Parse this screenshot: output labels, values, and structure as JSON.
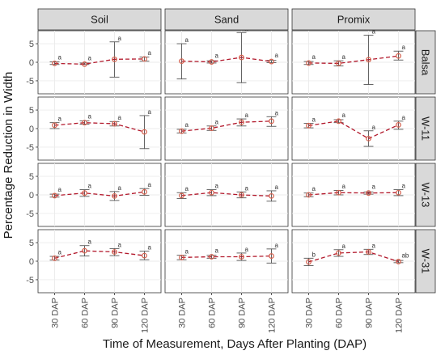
{
  "chart_data": {
    "type": "line",
    "ylabel": "Percentage Reduction in Width",
    "xlabel": "Time of Measurement, Days After Planting (DAP)",
    "categories": [
      "30 DAP",
      "60 DAP",
      "90 DAP",
      "120 DAP"
    ],
    "y_ticks": [
      -5,
      0,
      5
    ],
    "ylim": [
      -8.5,
      8.5
    ],
    "columns": [
      "Soil",
      "Sand",
      "Promix"
    ],
    "rows": [
      "Balsa",
      "W-11",
      "W-13",
      "W-31"
    ],
    "grid": true,
    "line_color": "#b2182b",
    "point_color": "#d6604d",
    "panels": [
      {
        "row": "Balsa",
        "column": "Soil",
        "values": [
          -0.3,
          -0.5,
          0.8,
          0.9
        ],
        "lower": [
          -0.6,
          -0.6,
          -4.0,
          0.3
        ],
        "upper": [
          0.1,
          -0.2,
          5.5,
          1.4
        ],
        "labels": [
          "a",
          "a",
          "a",
          "a"
        ]
      },
      {
        "row": "Balsa",
        "column": "Sand",
        "values": [
          0.3,
          0.1,
          1.3,
          0.2
        ],
        "lower": [
          -4.5,
          -0.2,
          -5.5,
          -0.1
        ],
        "upper": [
          5.0,
          0.4,
          8.0,
          0.5
        ],
        "labels": [
          "a",
          "a",
          "a",
          "a"
        ]
      },
      {
        "row": "Balsa",
        "column": "Promix",
        "values": [
          -0.2,
          -0.3,
          0.7,
          1.7
        ],
        "lower": [
          -0.6,
          -1.0,
          -6.0,
          0.6
        ],
        "upper": [
          0.2,
          0.4,
          7.3,
          3.0
        ],
        "labels": [
          "a",
          "a",
          "a",
          "a"
        ]
      },
      {
        "row": "W-11",
        "column": "Soil",
        "values": [
          0.9,
          1.6,
          1.3,
          -0.9
        ],
        "lower": [
          0.0,
          1.2,
          0.7,
          -5.4
        ],
        "upper": [
          1.6,
          2.1,
          1.9,
          3.5
        ],
        "labels": [
          "a",
          "a",
          "a",
          "a"
        ]
      },
      {
        "row": "W-11",
        "column": "Sand",
        "values": [
          -0.7,
          0.1,
          1.7,
          2.0
        ],
        "lower": [
          -1.2,
          -0.5,
          0.7,
          0.6
        ],
        "upper": [
          -0.2,
          0.7,
          2.6,
          3.2
        ],
        "labels": [
          "a",
          "a",
          "a",
          "a"
        ]
      },
      {
        "row": "W-11",
        "column": "Promix",
        "values": [
          0.8,
          2.0,
          -2.7,
          1.0
        ],
        "lower": [
          0.2,
          1.6,
          -4.8,
          -0.2
        ],
        "upper": [
          1.4,
          2.4,
          -0.6,
          2.0
        ],
        "labels": [
          "a",
          "a",
          "a",
          "a"
        ]
      },
      {
        "row": "W-13",
        "column": "Soil",
        "values": [
          -0.2,
          0.5,
          -0.3,
          0.8
        ],
        "lower": [
          -0.6,
          -0.4,
          -1.5,
          -0.1
        ],
        "upper": [
          0.2,
          1.4,
          0.9,
          1.7
        ],
        "labels": [
          "a",
          "a",
          "a",
          "a"
        ]
      },
      {
        "row": "W-13",
        "column": "Sand",
        "values": [
          -0.2,
          0.6,
          0.0,
          -0.3
        ],
        "lower": [
          -1.0,
          -0.2,
          -0.8,
          -1.7
        ],
        "upper": [
          0.6,
          1.4,
          0.8,
          1.1
        ],
        "labels": [
          "a",
          "a",
          "a",
          "a"
        ]
      },
      {
        "row": "W-13",
        "column": "Promix",
        "values": [
          0.0,
          0.6,
          0.5,
          0.6
        ],
        "lower": [
          -0.5,
          0.0,
          0.2,
          -0.2
        ],
        "upper": [
          0.5,
          1.2,
          0.8,
          1.4
        ],
        "labels": [
          "a",
          "a",
          "a",
          "a"
        ]
      },
      {
        "row": "W-31",
        "column": "Soil",
        "values": [
          0.8,
          2.8,
          2.5,
          1.5
        ],
        "lower": [
          0.3,
          1.4,
          1.5,
          0.4
        ],
        "upper": [
          1.3,
          4.2,
          3.4,
          2.7
        ],
        "labels": [
          "a",
          "a",
          "a",
          "a"
        ]
      },
      {
        "row": "W-31",
        "column": "Sand",
        "values": [
          1.0,
          1.2,
          1.2,
          1.4
        ],
        "lower": [
          0.4,
          0.8,
          0.2,
          -0.5
        ],
        "upper": [
          1.6,
          1.6,
          2.2,
          3.3
        ],
        "labels": [
          "a",
          "a",
          "a",
          "a"
        ]
      },
      {
        "row": "W-31",
        "column": "Promix",
        "values": [
          -0.2,
          2.2,
          2.5,
          -0.1
        ],
        "lower": [
          -1.2,
          1.3,
          1.8,
          -0.4
        ],
        "upper": [
          0.8,
          3.1,
          3.2,
          0.2
        ],
        "labels": [
          "b",
          "a",
          "a",
          "ab"
        ]
      }
    ]
  }
}
